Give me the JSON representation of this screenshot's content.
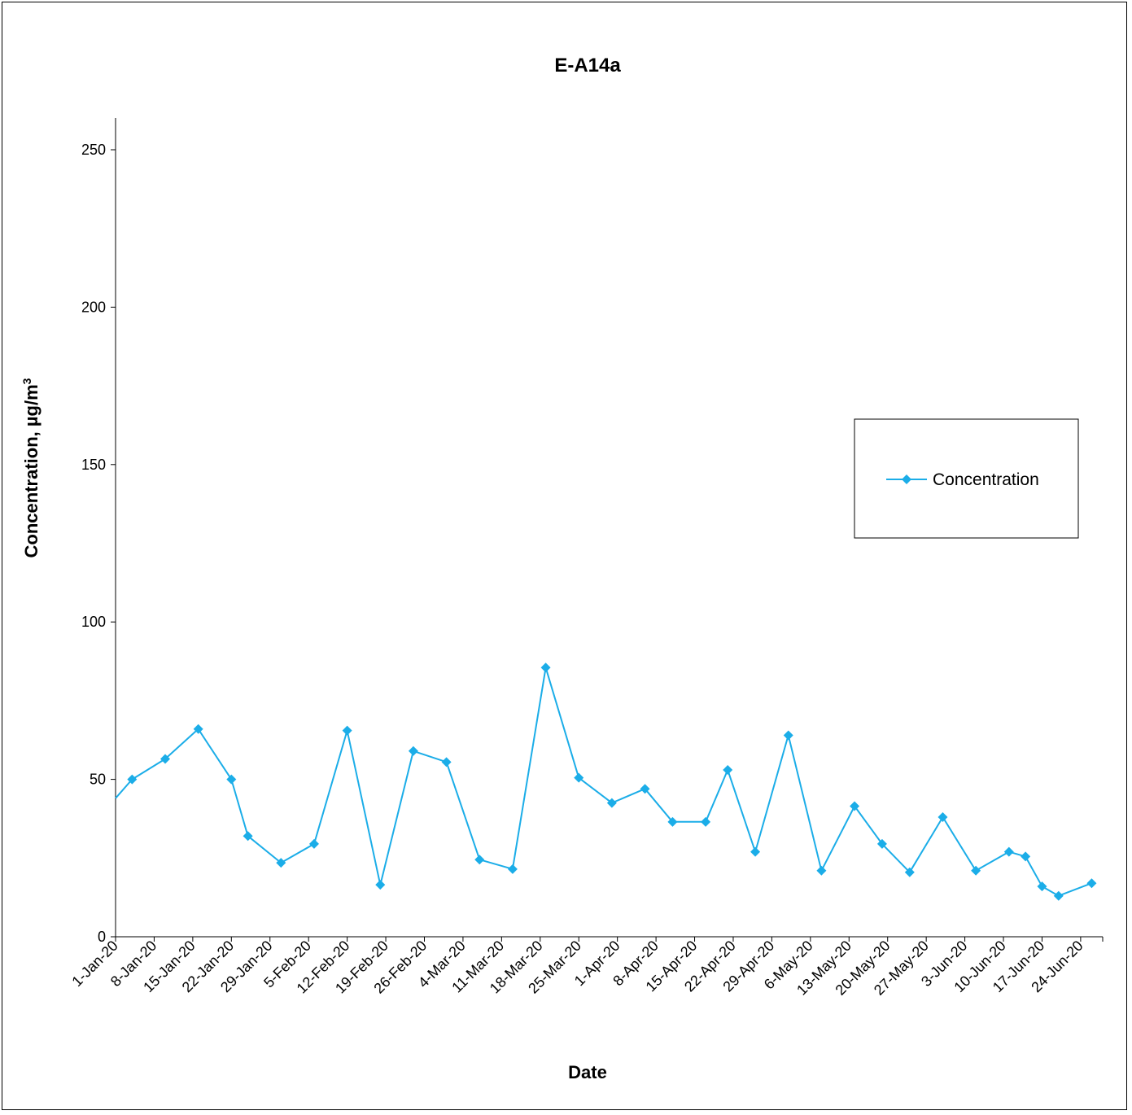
{
  "chart_data": {
    "type": "line",
    "title": "E-A14a",
    "xlabel": "Date",
    "ylabel_main": "Concentration, µg/m",
    "ylabel_sup": "3",
    "ylim": [
      0,
      260
    ],
    "yticks": [
      0,
      50,
      100,
      150,
      200,
      250
    ],
    "x_ticks": [
      "1-Jan-20",
      "8-Jan-20",
      "15-Jan-20",
      "22-Jan-20",
      "29-Jan-20",
      "5-Feb-20",
      "12-Feb-20",
      "19-Feb-20",
      "26-Feb-20",
      "4-Mar-20",
      "11-Mar-20",
      "18-Mar-20",
      "25-Mar-20",
      "1-Apr-20",
      "8-Apr-20",
      "15-Apr-20",
      "22-Apr-20",
      "29-Apr-20",
      "6-May-20",
      "13-May-20",
      "20-May-20",
      "27-May-20",
      "3-Jun-20",
      "10-Jun-20",
      "17-Jun-20",
      "24-Jun-20"
    ],
    "xlim": [
      "2020-01-01",
      "2020-06-28"
    ],
    "grid": false,
    "legend_position": "right",
    "series": [
      {
        "name": "Concentration",
        "color": "#1BADE8",
        "marker": "diamond",
        "points": [
          {
            "x": "2020-01-01",
            "y": 44
          },
          {
            "x": "2020-01-04",
            "y": 50
          },
          {
            "x": "2020-01-10",
            "y": 56.5
          },
          {
            "x": "2020-01-16",
            "y": 66
          },
          {
            "x": "2020-01-22",
            "y": 50
          },
          {
            "x": "2020-01-25",
            "y": 32
          },
          {
            "x": "2020-01-31",
            "y": 23.5
          },
          {
            "x": "2020-02-06",
            "y": 29.5
          },
          {
            "x": "2020-02-12",
            "y": 65.5
          },
          {
            "x": "2020-02-18",
            "y": 16.5
          },
          {
            "x": "2020-02-24",
            "y": 59
          },
          {
            "x": "2020-03-01",
            "y": 55.5
          },
          {
            "x": "2020-03-07",
            "y": 24.5
          },
          {
            "x": "2020-03-13",
            "y": 21.5
          },
          {
            "x": "2020-03-19",
            "y": 85.5
          },
          {
            "x": "2020-03-25",
            "y": 50.5
          },
          {
            "x": "2020-03-31",
            "y": 42.5
          },
          {
            "x": "2020-04-06",
            "y": 47
          },
          {
            "x": "2020-04-11",
            "y": 36.5
          },
          {
            "x": "2020-04-17",
            "y": 36.5
          },
          {
            "x": "2020-04-21",
            "y": 53
          },
          {
            "x": "2020-04-26",
            "y": 27
          },
          {
            "x": "2020-05-02",
            "y": 64
          },
          {
            "x": "2020-05-08",
            "y": 21
          },
          {
            "x": "2020-05-14",
            "y": 41.5
          },
          {
            "x": "2020-05-19",
            "y": 29.5
          },
          {
            "x": "2020-05-24",
            "y": 20.5
          },
          {
            "x": "2020-05-30",
            "y": 38
          },
          {
            "x": "2020-06-05",
            "y": 21
          },
          {
            "x": "2020-06-11",
            "y": 27
          },
          {
            "x": "2020-06-14",
            "y": 25.5
          },
          {
            "x": "2020-06-17",
            "y": 16
          },
          {
            "x": "2020-06-20",
            "y": 13
          },
          {
            "x": "2020-06-26",
            "y": 17
          }
        ]
      }
    ]
  }
}
